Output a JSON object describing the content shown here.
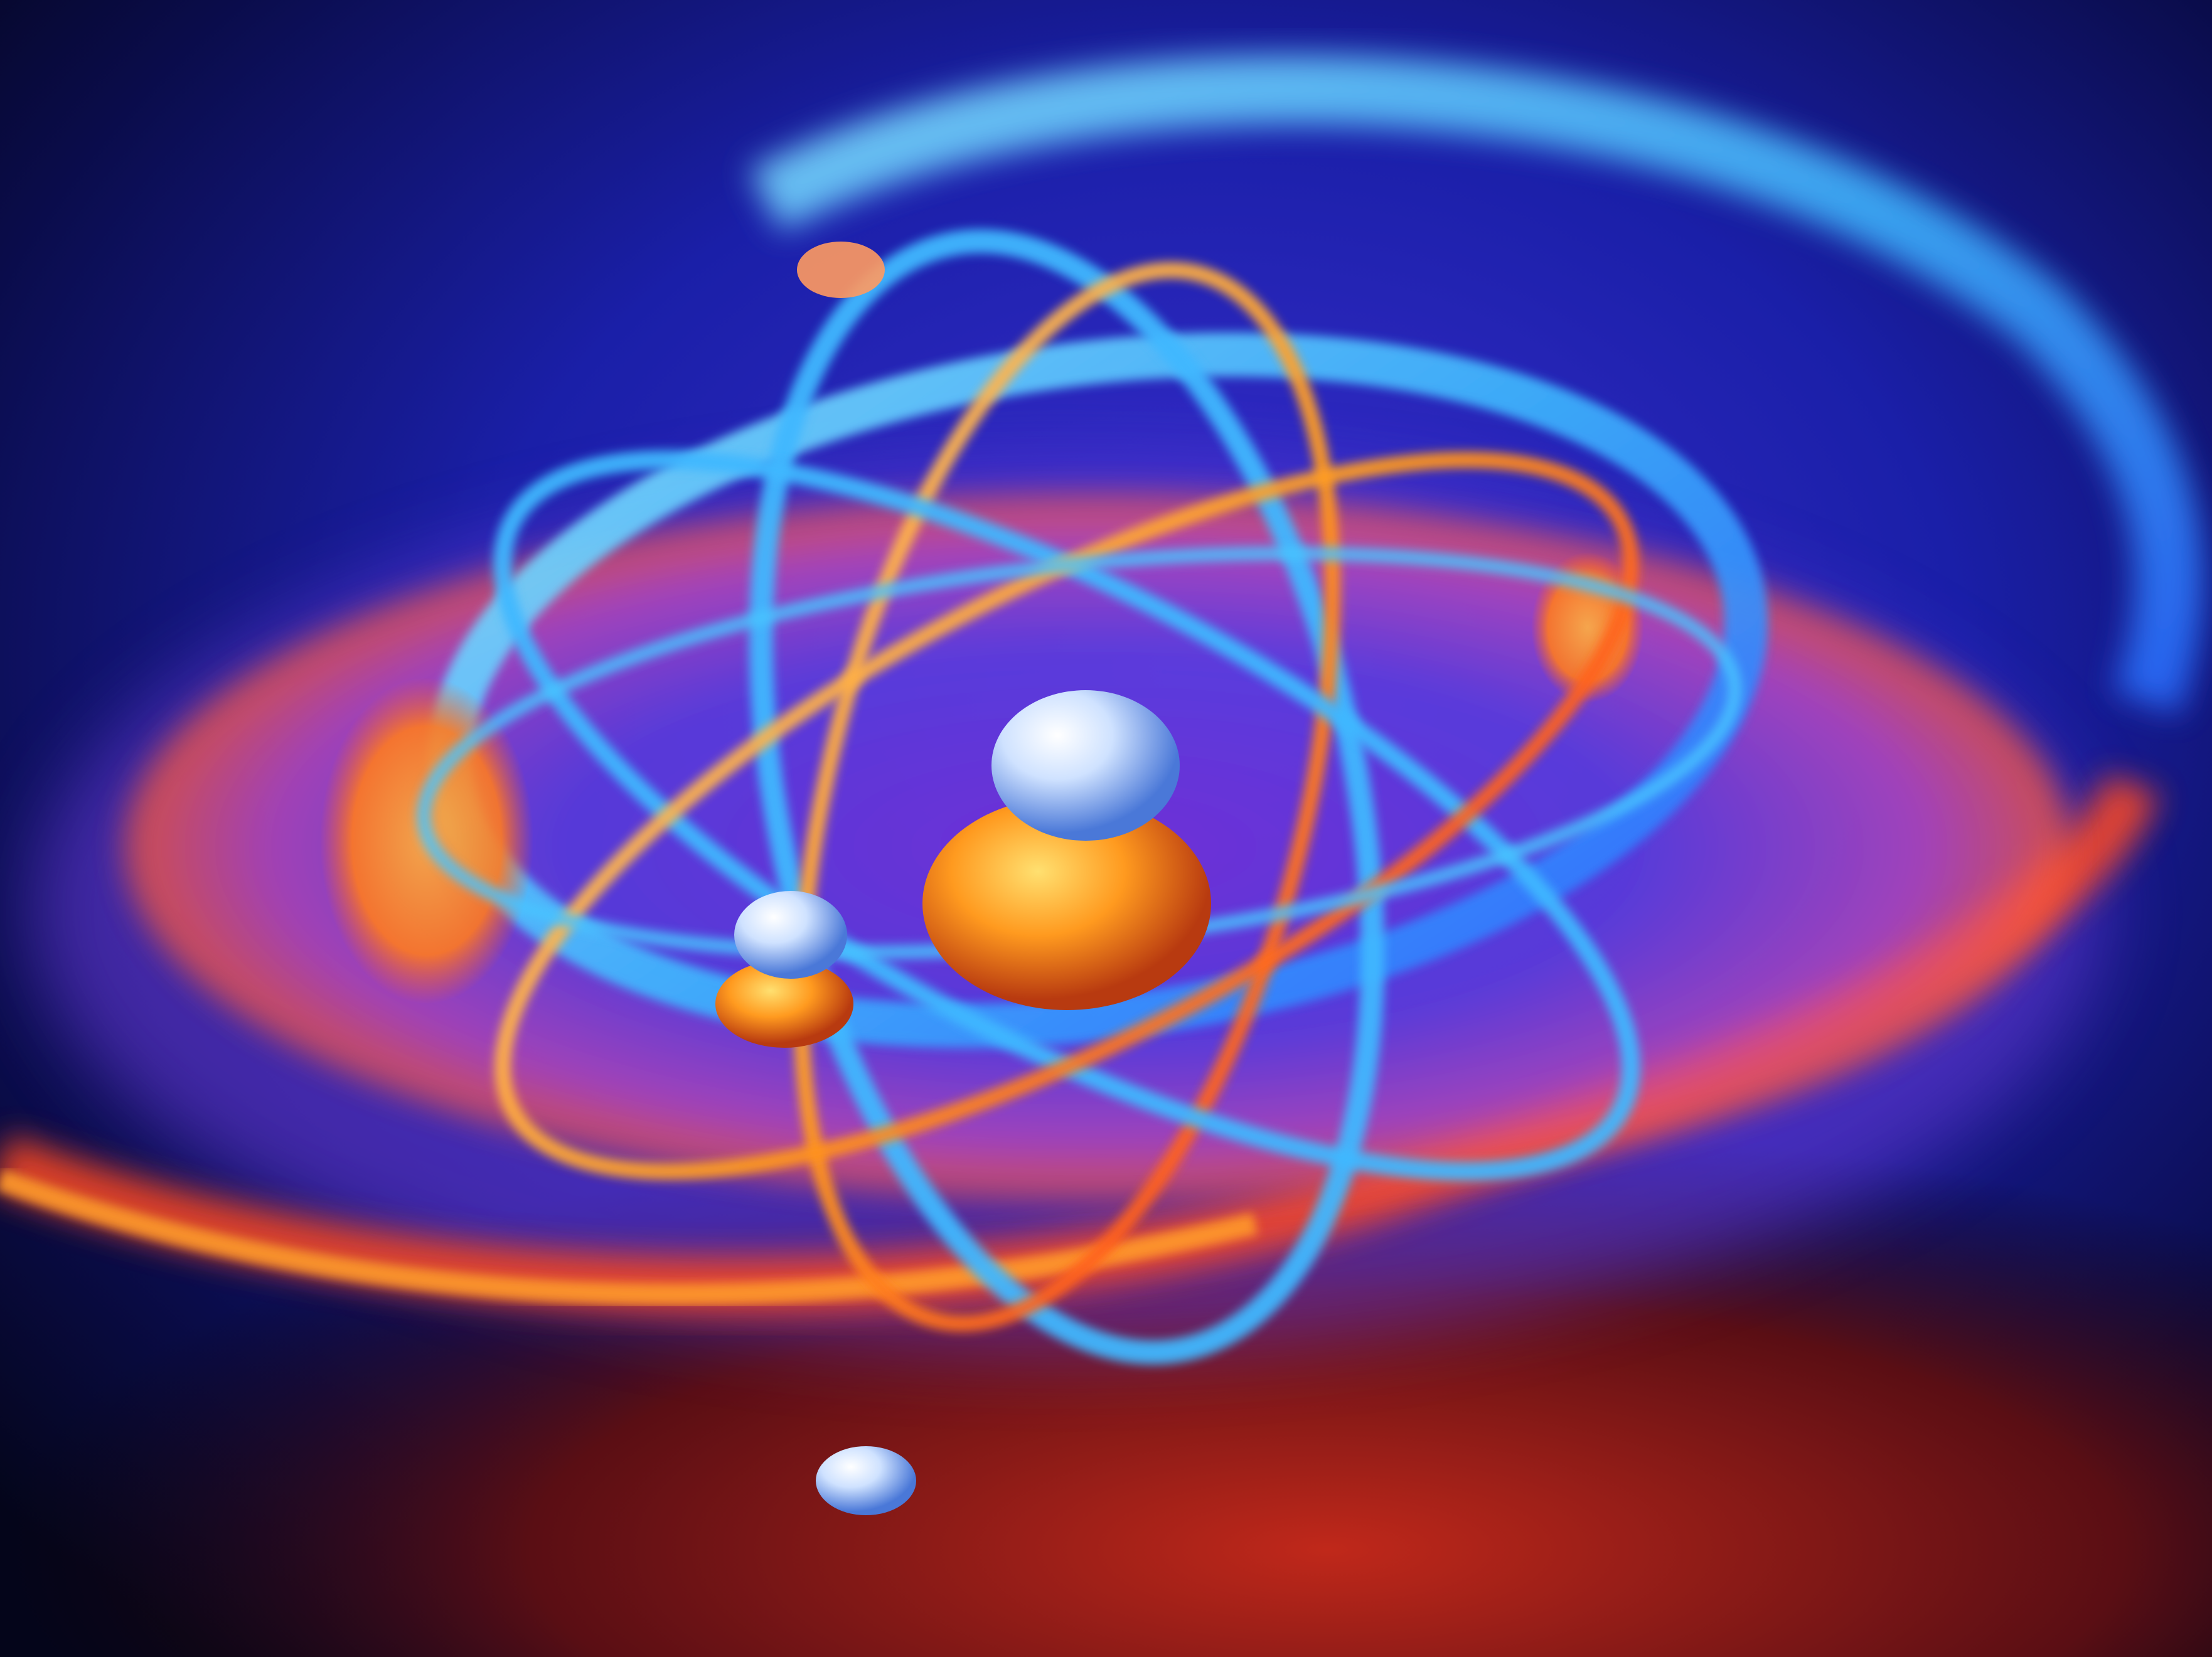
{
  "image": {
    "subject": "atom-model",
    "colors": {
      "background_dark": "#05061a",
      "background_blue": "#1a1fa8",
      "ring_cyan": "#3fb8ff",
      "ring_blue": "#2a6dff",
      "orbit_orange": "#ff9a1f",
      "orbit_red": "#ff3b1a",
      "magenta_glow": "#c040c8",
      "nucleus_orange": "#ffb020",
      "electron_silver": "#cfe2ff"
    }
  }
}
